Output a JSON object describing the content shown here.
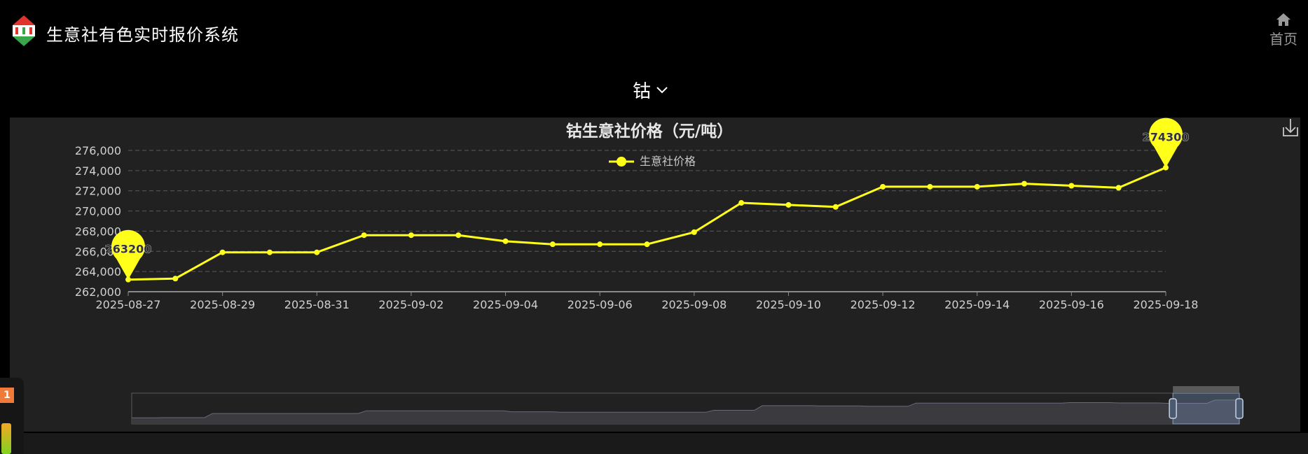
{
  "header": {
    "app_title": "生意社有色实时报价系统",
    "home_label": "首页",
    "home_icon": "home-icon"
  },
  "selector": {
    "metal": "钴",
    "icon": "chevron-down-icon"
  },
  "chart_data": {
    "type": "line",
    "title": "钴生意社价格（元/吨）",
    "legend": {
      "entries": [
        "生意社价格"
      ],
      "position": "top-center"
    },
    "series": [
      {
        "name": "生意社价格",
        "color": "#ffff1a",
        "x": [
          "2025-08-27",
          "2025-08-28",
          "2025-08-29",
          "2025-08-30",
          "2025-08-31",
          "2025-09-01",
          "2025-09-02",
          "2025-09-03",
          "2025-09-04",
          "2025-09-05",
          "2025-09-06",
          "2025-09-07",
          "2025-09-08",
          "2025-09-09",
          "2025-09-10",
          "2025-09-11",
          "2025-09-12",
          "2025-09-13",
          "2025-09-14",
          "2025-09-15",
          "2025-09-16",
          "2025-09-17",
          "2025-09-18"
        ],
        "values": [
          263200,
          263300,
          265900,
          265900,
          265900,
          267600,
          267600,
          267600,
          267000,
          266700,
          266700,
          266700,
          267900,
          270800,
          270600,
          270400,
          272400,
          272400,
          272400,
          272700,
          272500,
          272300,
          274300
        ]
      }
    ],
    "x_tick_labels": [
      "2025-08-27",
      "2025-08-29",
      "2025-08-31",
      "2025-09-02",
      "2025-09-04",
      "2025-09-06",
      "2025-09-08",
      "2025-09-10",
      "2025-09-12",
      "2025-09-14",
      "2025-09-16",
      "2025-09-18"
    ],
    "y_ticks": [
      "262,000",
      "264,000",
      "266,000",
      "268,000",
      "270,000",
      "272,000",
      "274,000",
      "276,000"
    ],
    "ylim": [
      262000,
      276000
    ],
    "grid": "horizontal-dashed",
    "markers": {
      "min_label": "263200",
      "max_label": "274300"
    },
    "toolbox_icon": "download-icon",
    "data_zoom": {
      "start": 0.94,
      "end": 1.0
    }
  },
  "side_widget": {
    "badge": "1"
  },
  "colors": {
    "background": "#000000",
    "panel": "#212121",
    "line": "#ffff1a",
    "axis_text": "#d0d0d0",
    "grid": "#5a5a5a"
  }
}
